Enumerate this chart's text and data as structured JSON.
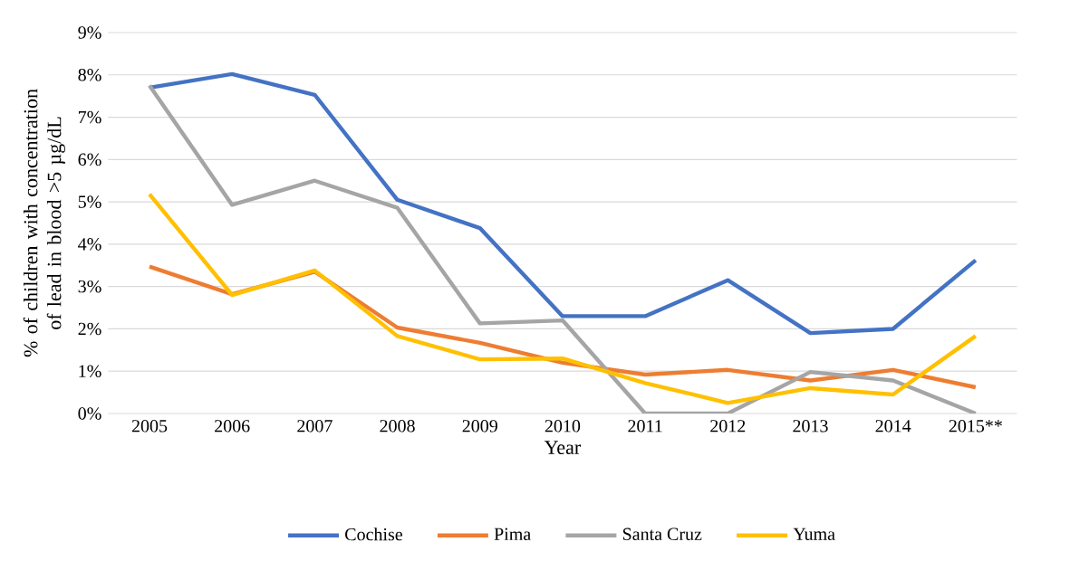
{
  "chart_data": {
    "type": "line",
    "xlabel": "Year",
    "ylabel": "% of children with concentration of lead in blood  >5 µg/dL",
    "categories": [
      "2005",
      "2006",
      "2007",
      "2008",
      "2009",
      "2010",
      "2011",
      "2012",
      "2013",
      "2014",
      "2015**"
    ],
    "series": [
      {
        "name": "Cochise",
        "color": "#4472c4",
        "values": [
          7.7,
          8.02,
          7.53,
          5.05,
          4.38,
          2.3,
          2.3,
          3.15,
          1.9,
          2.0,
          3.62
        ]
      },
      {
        "name": "Pima",
        "color": "#ed7d31",
        "values": [
          3.47,
          2.82,
          3.35,
          2.03,
          1.67,
          1.2,
          0.92,
          1.03,
          0.78,
          1.03,
          0.62
        ]
      },
      {
        "name": "Santa Cruz",
        "color": "#a5a5a5",
        "values": [
          7.75,
          4.93,
          5.5,
          4.86,
          2.13,
          2.2,
          0,
          0,
          0.98,
          0.78,
          0
        ]
      },
      {
        "name": "Yuma",
        "color": "#ffc000",
        "values": [
          5.18,
          2.8,
          3.38,
          1.83,
          1.28,
          1.3,
          0.72,
          0.25,
          0.6,
          0.45,
          1.83
        ]
      }
    ],
    "ylim": [
      0,
      9
    ],
    "yticks": [
      {
        "value": 0,
        "label": "0%"
      },
      {
        "value": 1,
        "label": "1%"
      },
      {
        "value": 2,
        "label": "2%"
      },
      {
        "value": 3,
        "label": "3%"
      },
      {
        "value": 4,
        "label": "4%"
      },
      {
        "value": 5,
        "label": "5%"
      },
      {
        "value": 6,
        "label": "6%"
      },
      {
        "value": 7,
        "label": "7%"
      },
      {
        "value": 8,
        "label": "8%"
      },
      {
        "value": 9,
        "label": "9%"
      }
    ],
    "grid": "y",
    "legend": "bottom",
    "marker": "none",
    "line_style": "solid"
  }
}
